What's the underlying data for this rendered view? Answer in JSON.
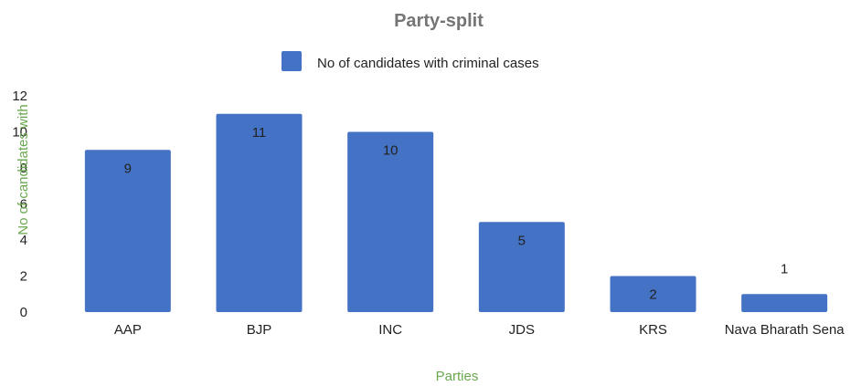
{
  "chart_data": {
    "type": "bar",
    "title": "Party-split",
    "categories": [
      "AAP",
      "BJP",
      "INC",
      "JDS",
      "KRS",
      "Nava Bharath Sena"
    ],
    "series": [
      {
        "name": "No of candidates with criminal cases",
        "values": [
          9,
          11,
          10,
          5,
          2,
          1
        ],
        "color": "#4472c4"
      }
    ],
    "xlabel": "Parties",
    "ylabel": "No of candidates with",
    "ylim": [
      0,
      12
    ],
    "yticks": [
      0,
      2,
      4,
      6,
      8,
      10,
      12
    ],
    "grid": false,
    "legend_position": "top",
    "data_labels": true,
    "axis_title_color": "#6aa84f"
  }
}
